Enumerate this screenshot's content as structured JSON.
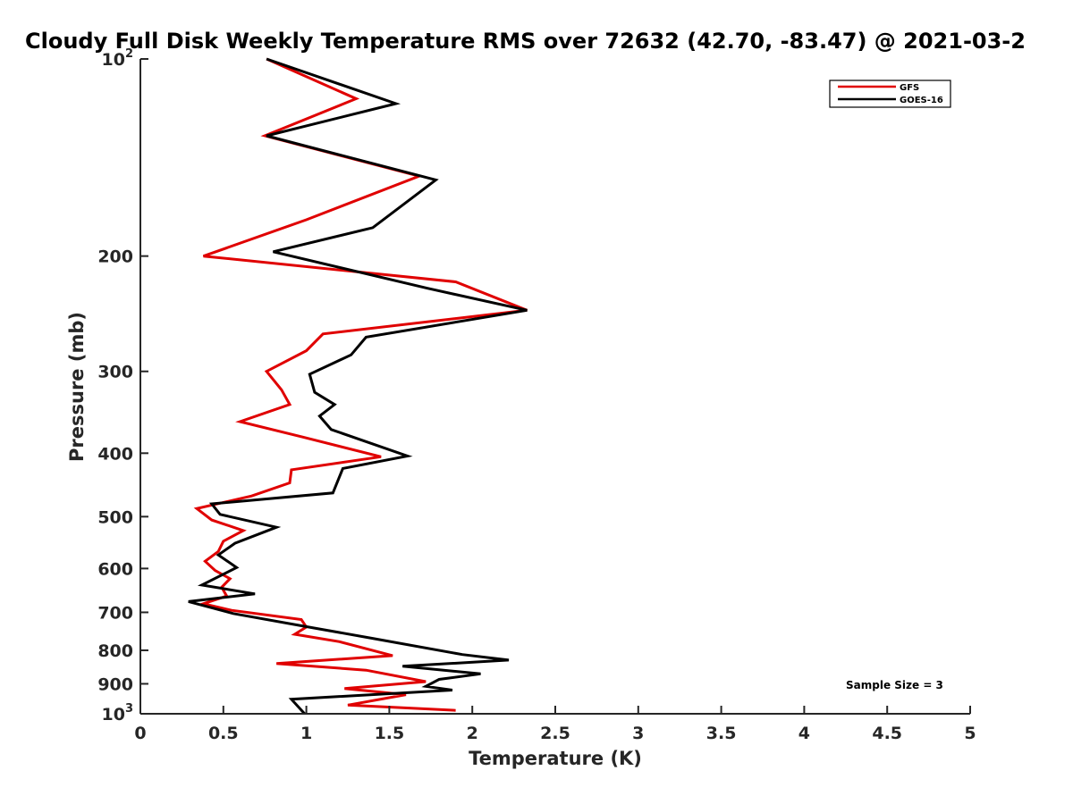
{
  "chart_data": {
    "type": "line",
    "title": "Cloudy Full Disk Weekly Temperature RMS over 72632 (42.70, -83.47) @ 2021-03-2",
    "xlabel": "Temperature (K)",
    "ylabel": "Pressure (mb)",
    "xlim": [
      0,
      5
    ],
    "ylim": [
      100,
      1000
    ],
    "y_scale": "log",
    "y_reversed": true,
    "x_ticks": [
      "0",
      "0.5",
      "1",
      "1.5",
      "2",
      "2.5",
      "3",
      "3.5",
      "4",
      "4.5",
      "5"
    ],
    "y_ticks": [
      {
        "value": 100,
        "base": "10",
        "exp": "2"
      },
      {
        "value": 200,
        "label": "200"
      },
      {
        "value": 300,
        "label": "300"
      },
      {
        "value": 400,
        "label": "400"
      },
      {
        "value": 500,
        "label": "500"
      },
      {
        "value": 600,
        "label": "600"
      },
      {
        "value": 700,
        "label": "700"
      },
      {
        "value": 800,
        "label": "800"
      },
      {
        "value": 900,
        "label": "900"
      },
      {
        "value": 1000,
        "base": "10",
        "exp": "3"
      }
    ],
    "grid": false,
    "legend_position": "top-right",
    "annotation": "Sample Size = 3",
    "series": [
      {
        "name": "GFS",
        "color": "#e00000",
        "points": [
          [
            0.76,
            100
          ],
          [
            1.3,
            115
          ],
          [
            0.75,
            131
          ],
          [
            1.68,
            151
          ],
          [
            1.0,
            176
          ],
          [
            0.38,
            200
          ],
          [
            1.9,
            219
          ],
          [
            2.33,
            242
          ],
          [
            1.1,
            263
          ],
          [
            1.0,
            279
          ],
          [
            0.76,
            300
          ],
          [
            0.85,
            320
          ],
          [
            0.9,
            337
          ],
          [
            0.6,
            358
          ],
          [
            0.98,
            378
          ],
          [
            1.45,
            405
          ],
          [
            0.91,
            424
          ],
          [
            0.9,
            444
          ],
          [
            0.67,
            465
          ],
          [
            0.34,
            486
          ],
          [
            0.43,
            506
          ],
          [
            0.62,
            525
          ],
          [
            0.5,
            545
          ],
          [
            0.47,
            565
          ],
          [
            0.39,
            585
          ],
          [
            0.45,
            604
          ],
          [
            0.54,
            622
          ],
          [
            0.49,
            641
          ],
          [
            0.52,
            661
          ],
          [
            0.38,
            679
          ],
          [
            0.55,
            695
          ],
          [
            0.97,
            718
          ],
          [
            1.0,
            737
          ],
          [
            0.93,
            756
          ],
          [
            1.2,
            776
          ],
          [
            1.52,
            815
          ],
          [
            0.82,
            838
          ],
          [
            1.36,
            858
          ],
          [
            1.72,
            893
          ],
          [
            1.23,
            915
          ],
          [
            1.6,
            935
          ],
          [
            1.25,
            970
          ],
          [
            1.9,
            988
          ]
        ]
      },
      {
        "name": "GOES-16",
        "color": "#000000",
        "points": [
          [
            0.76,
            100
          ],
          [
            1.54,
            117
          ],
          [
            0.76,
            131
          ],
          [
            1.78,
            153
          ],
          [
            1.4,
            181
          ],
          [
            0.8,
            197
          ],
          [
            1.73,
            224
          ],
          [
            2.33,
            242
          ],
          [
            1.36,
            266
          ],
          [
            1.27,
            283
          ],
          [
            1.02,
            303
          ],
          [
            1.05,
            323
          ],
          [
            1.17,
            337
          ],
          [
            1.08,
            351
          ],
          [
            1.15,
            368
          ],
          [
            1.61,
            404
          ],
          [
            1.22,
            422
          ],
          [
            1.16,
            460
          ],
          [
            0.43,
            478
          ],
          [
            0.48,
            496
          ],
          [
            0.82,
            519
          ],
          [
            0.57,
            549
          ],
          [
            0.47,
            572
          ],
          [
            0.58,
            598
          ],
          [
            0.37,
            636
          ],
          [
            0.69,
            656
          ],
          [
            0.29,
            674
          ],
          [
            0.56,
            703
          ],
          [
            1.05,
            740
          ],
          [
            1.4,
            767
          ],
          [
            1.94,
            812
          ],
          [
            2.22,
            828
          ],
          [
            1.58,
            846
          ],
          [
            2.05,
            869
          ],
          [
            1.8,
            886
          ],
          [
            1.72,
            908
          ],
          [
            1.88,
            920
          ],
          [
            0.91,
            950
          ],
          [
            0.99,
            1000
          ]
        ]
      }
    ]
  }
}
